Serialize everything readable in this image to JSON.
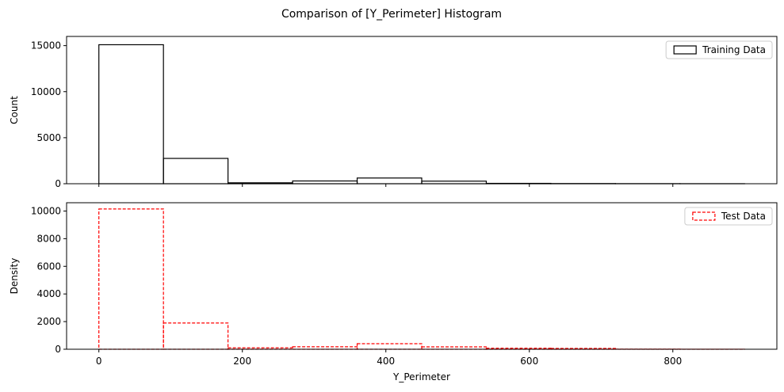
{
  "figure": {
    "title": "Comparison of [Y_Perimeter] Histogram"
  },
  "chart_data": [
    {
      "type": "histogram",
      "ylabel": "Count",
      "xlabel": "",
      "show_x_ticklabels": false,
      "xlim": [
        -45,
        945
      ],
      "ylim": [
        0,
        16000
      ],
      "xticks": [
        0,
        200,
        400,
        600,
        800
      ],
      "yticks": [
        0,
        5000,
        10000,
        15000
      ],
      "legend": {
        "position": "top-right"
      },
      "grid": false,
      "series": [
        {
          "name": "Training Data",
          "style": "solid",
          "color": "#000000",
          "bin_edges": [
            0,
            90,
            180,
            270,
            360,
            450,
            540,
            630,
            720,
            810,
            900
          ],
          "values": [
            15100,
            2750,
            100,
            300,
            620,
            280,
            40,
            20,
            10,
            5
          ]
        }
      ]
    },
    {
      "type": "histogram",
      "ylabel": "Density",
      "xlabel": "Y_Perimeter",
      "show_x_ticklabels": true,
      "xlim": [
        -45,
        945
      ],
      "ylim": [
        0,
        10600
      ],
      "xticks": [
        0,
        200,
        400,
        600,
        800
      ],
      "yticks": [
        0,
        2000,
        4000,
        6000,
        8000,
        10000
      ],
      "legend": {
        "position": "top-right"
      },
      "grid": false,
      "series": [
        {
          "name": "Test Data",
          "style": "dashed",
          "color": "#ff0000",
          "bin_edges": [
            0,
            90,
            180,
            270,
            360,
            450,
            540,
            630,
            720,
            810,
            900
          ],
          "values": [
            10150,
            1900,
            100,
            180,
            400,
            170,
            70,
            60,
            10,
            5
          ]
        }
      ]
    }
  ]
}
